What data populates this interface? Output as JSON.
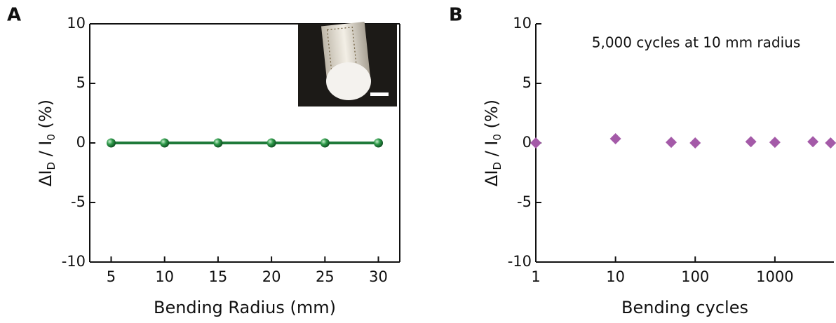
{
  "chart_data": [
    {
      "type": "line",
      "panel": "A",
      "xlabel": "Bending Radius (mm)",
      "ylabel": [
        "ΔI",
        "D",
        " / I",
        "0",
        " (%)"
      ],
      "x": [
        5,
        10,
        15,
        20,
        25,
        30
      ],
      "values": [
        0,
        0,
        0,
        0,
        0,
        0
      ],
      "color": "#1f7a3a",
      "xlim": [
        3,
        32
      ],
      "xticks": [
        5,
        10,
        15,
        20,
        25,
        30
      ],
      "ylim": [
        -10,
        10
      ],
      "yticks": [
        -10,
        -5,
        0,
        5,
        10
      ]
    },
    {
      "type": "scatter",
      "panel": "B",
      "xlabel": "Bending cycles",
      "ylabel": [
        "ΔI",
        "D",
        " / I",
        "0",
        " (%)"
      ],
      "annotation": "5,000 cycles at 10 mm radius",
      "x": [
        1,
        10,
        50,
        100,
        500,
        1000,
        3000,
        5000
      ],
      "values": [
        0,
        0.35,
        0.05,
        0,
        0.1,
        0.05,
        0.1,
        0
      ],
      "color": "#a45aa8",
      "xlog": true,
      "xlim": [
        1,
        5500
      ],
      "xticks": [
        1,
        10,
        100,
        1000
      ],
      "ylim": [
        -10,
        10
      ],
      "yticks": [
        -10,
        -5,
        0,
        5,
        10
      ]
    }
  ]
}
